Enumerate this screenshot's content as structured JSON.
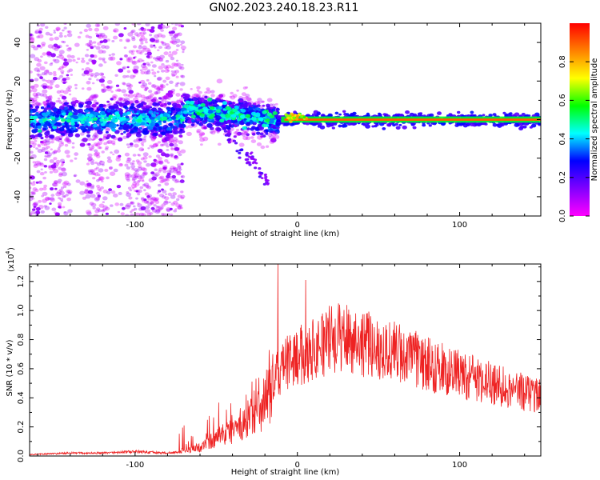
{
  "title": "GN02.2023.240.18.23.R11",
  "chart_data": [
    {
      "type": "heatmap",
      "xlabel": "Height of straight line (km)",
      "ylabel": "Frequency (Hz)",
      "xlim": [
        -165,
        150
      ],
      "ylim": [
        -50,
        50
      ],
      "xticks": [
        -100,
        0,
        100
      ],
      "yticks": [
        -40,
        -20,
        0,
        20,
        40
      ],
      "colorbar": {
        "label": "Normalized spectral amplitude",
        "range": [
          0.0,
          1.0
        ],
        "ticks": [
          "0.0",
          "0.2",
          "0.4",
          "0.6",
          "0.8"
        ],
        "tick_values": [
          0.0,
          0.2,
          0.4,
          0.6,
          0.8
        ],
        "colors": [
          "#ff00ff",
          "#8000ff",
          "#0000ff",
          "#00ffff",
          "#00ff00",
          "#ffff00",
          "#ff8000",
          "#ff0000"
        ]
      },
      "features": [
        {
          "x_range": [
            -165,
            -70
          ],
          "freq_center": 0,
          "freq_spread": 8,
          "amplitude": 0.45,
          "scatter_spread": 50
        },
        {
          "x_range": [
            -70,
            -12
          ],
          "freq_center": "declining from 8 to -2",
          "amplitude": 0.5
        },
        {
          "x_range": [
            -12,
            150
          ],
          "freq_center": 0,
          "freq_spread": 1,
          "amplitude": 0.9
        }
      ]
    },
    {
      "type": "line",
      "xlabel": "Height of straight line (km)",
      "ylabel": "SNR (10 * v/v)",
      "scale_note": "(x10",
      "scale_exp": "4",
      "xlim": [
        -165,
        150
      ],
      "ylim": [
        0,
        1.32
      ],
      "xticks": [
        -100,
        0,
        100
      ],
      "yticks": [
        "0.0",
        "0.2",
        "0.4",
        "0.6",
        "0.8",
        "1.0",
        "1.2"
      ],
      "ytick_values": [
        0.0,
        0.2,
        0.4,
        0.6,
        0.8,
        1.0,
        1.2
      ],
      "color": "#ee2222",
      "envelope": {
        "x": [
          -165,
          -140,
          -120,
          -100,
          -80,
          -70,
          -60,
          -50,
          -40,
          -30,
          -20,
          -15,
          -10,
          -5,
          0,
          10,
          20,
          30,
          40,
          50,
          60,
          80,
          100,
          120,
          140,
          150
        ],
        "y": [
          0.01,
          0.02,
          0.02,
          0.03,
          0.02,
          0.03,
          0.06,
          0.12,
          0.18,
          0.26,
          0.38,
          0.5,
          0.6,
          0.65,
          0.68,
          0.74,
          0.8,
          0.82,
          0.78,
          0.74,
          0.72,
          0.63,
          0.56,
          0.5,
          0.44,
          0.42
        ]
      },
      "peaks": [
        {
          "x": -12,
          "y": 1.32
        },
        {
          "x": 5,
          "y": 1.21
        },
        {
          "x": 26,
          "y": 1.04
        }
      ]
    }
  ]
}
